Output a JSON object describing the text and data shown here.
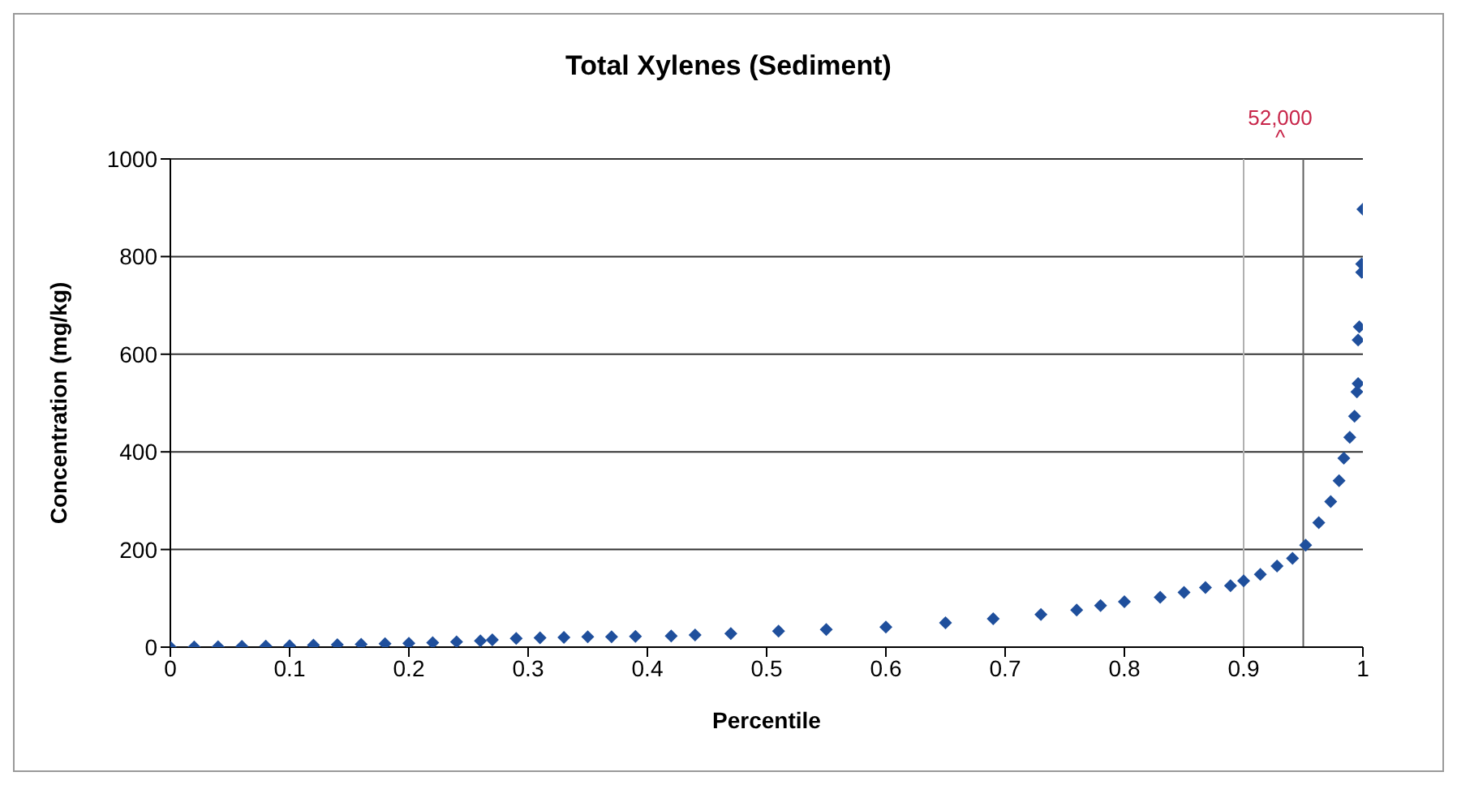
{
  "chart_data": {
    "type": "scatter",
    "title": "Total Xylenes (Sediment)",
    "xlabel": "Percentile",
    "ylabel": "Concentration (mg/kg)",
    "annotations": [
      "52,000\n^"
    ],
    "x": [
      0,
      0.02,
      0.04,
      0.06,
      0.08,
      0.1,
      0.12,
      0.14,
      0.16,
      0.18,
      0.2,
      0.22,
      0.24,
      0.26,
      0.27,
      0.29,
      0.31,
      0.33,
      0.35,
      0.37,
      0.39,
      0.42,
      0.44,
      0.47,
      0.51,
      0.55,
      0.6,
      0.65,
      0.69,
      0.73,
      0.76,
      0.78,
      0.8,
      0.83,
      0.85,
      0.868,
      0.889,
      0.9,
      0.914,
      0.928,
      0.941,
      0.952,
      0.963,
      0.973,
      0.98,
      0.984,
      0.989,
      0.993,
      0.995,
      0.996,
      0.996,
      0.997,
      0.999,
      0.999,
      1
    ],
    "series": [
      {
        "color": "#1f4f9c",
        "values": [
          0,
          0.5,
          1,
          1.5,
          2,
          3,
          4,
          5,
          6,
          7,
          8,
          9,
          11,
          13,
          15,
          18,
          19,
          20,
          21,
          21,
          22,
          23,
          25,
          28,
          33,
          36,
          41,
          50,
          58,
          67,
          76,
          85,
          93,
          102,
          112,
          122,
          126,
          136,
          149,
          166,
          182,
          209,
          255,
          298,
          341,
          387,
          430,
          473,
          523,
          540,
          629,
          656,
          768,
          785,
          897
        ]
      }
    ],
    "marker": "diamond",
    "xlim": [
      0,
      1
    ],
    "xticks": [
      0,
      0.1,
      0.2,
      0.3,
      0.4,
      0.5,
      0.6,
      0.7,
      0.8,
      0.9,
      1
    ],
    "ylim": [
      0,
      1000
    ],
    "yticks": [
      0,
      200,
      400,
      600,
      800,
      1000
    ],
    "grid": "y",
    "ref_lines": [
      {
        "axis": "x",
        "value": 0.9,
        "color": "#b0b0b0"
      },
      {
        "axis": "x",
        "value": 0.95,
        "color": "#606060"
      }
    ]
  }
}
